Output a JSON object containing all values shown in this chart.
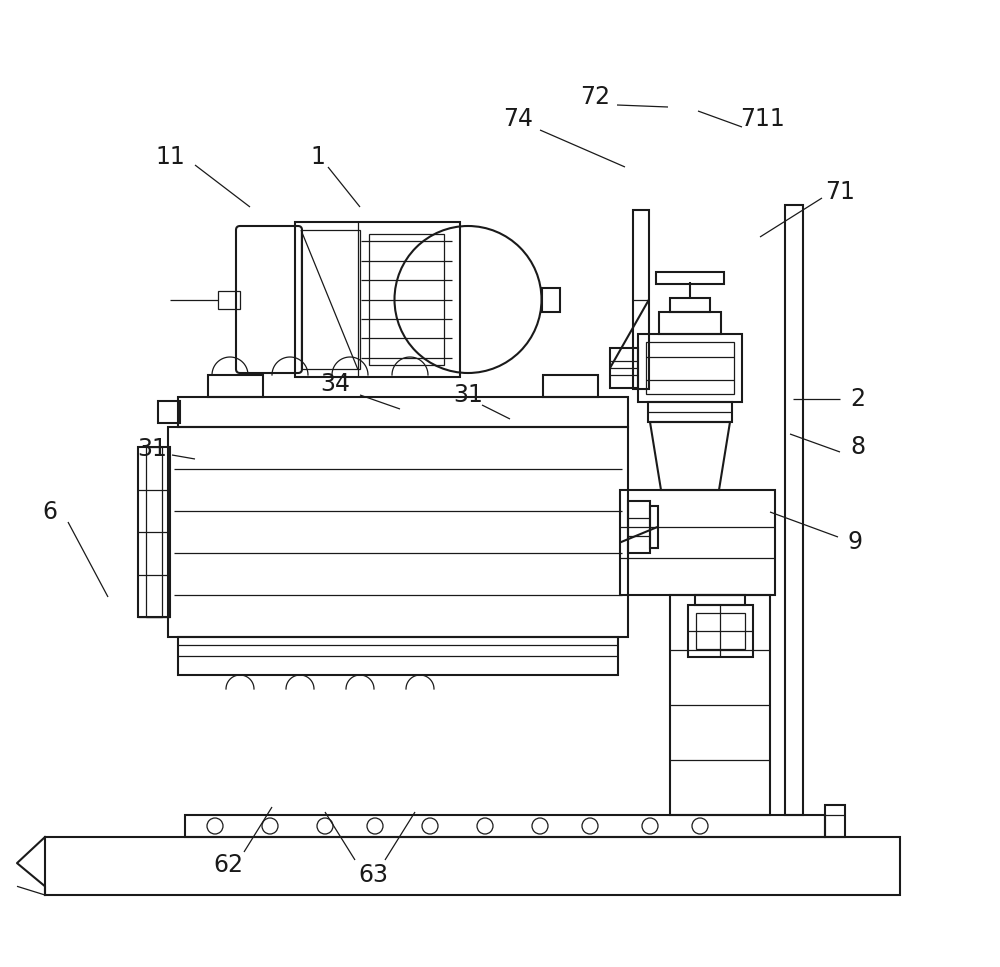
{
  "bg_color": "#ffffff",
  "line_color": "#1a1a1a",
  "lw": 1.5,
  "lw_thin": 0.9,
  "label_fontsize": 17,
  "figsize": [
    10.0,
    9.67
  ],
  "dpi": 100
}
